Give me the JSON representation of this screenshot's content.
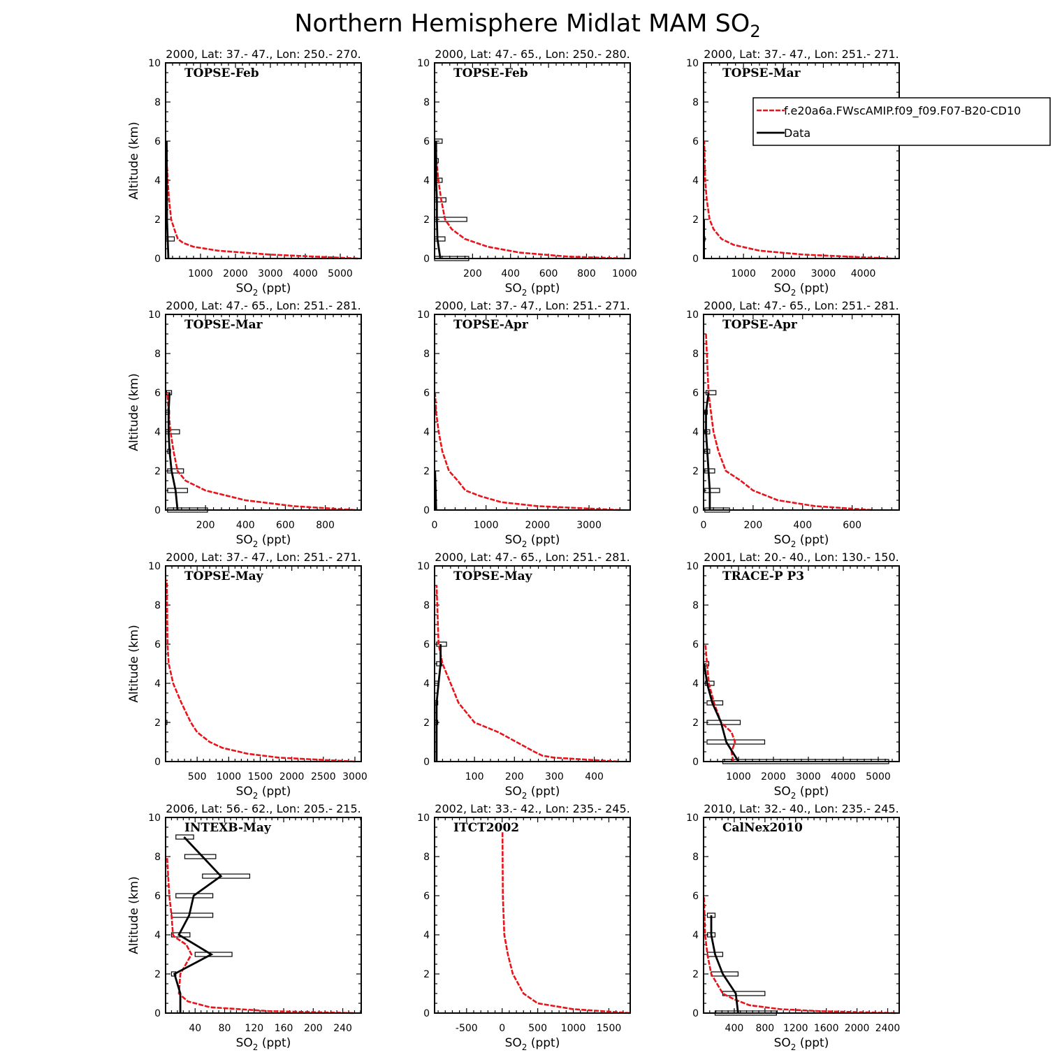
{
  "figure_title": "Northern Hemisphere Midlat MAM SO",
  "figure_title_sub": "2",
  "legend": {
    "model": "f.e20a6a.FWscAMIP.f09_f09.F07-B20-CD10",
    "data": "Data",
    "model_color": "#e8141b",
    "data_color": "#000000"
  },
  "ylabel": "Altitude (km)",
  "xlabel_pre": "SO",
  "xlabel_sub": "2",
  "xlabel_post": " (ppt)",
  "chart_data": [
    {
      "type": "line",
      "title": "2000, Lat: 37.- 47., Lon: 250.- 270.",
      "campaign": "TOPSE-Feb",
      "xlim": [
        0,
        5600
      ],
      "ylim": [
        0,
        10
      ],
      "xticks": [
        1000,
        2000,
        3000,
        4000,
        5000
      ],
      "yticks": [
        0,
        2,
        4,
        6,
        8,
        10
      ],
      "model": {
        "x": [
          5500,
          3000,
          1500,
          800,
          500,
          350,
          250,
          160,
          100,
          60,
          30,
          10
        ],
        "y": [
          0,
          0.2,
          0.4,
          0.6,
          0.8,
          1.0,
          1.5,
          2.0,
          3.0,
          4.0,
          5.0,
          6.0
        ]
      },
      "data": {
        "x": [
          80,
          60,
          40,
          30
        ],
        "y": [
          0,
          1,
          2,
          6
        ]
      },
      "boxes": [
        {
          "y": 1,
          "x1": 10,
          "x2": 250
        }
      ]
    },
    {
      "type": "line",
      "title": "2000, Lat: 47.- 65., Lon: 250.- 280.",
      "campaign": "TOPSE-Feb",
      "xlim": [
        0,
        1030
      ],
      "ylim": [
        0,
        10
      ],
      "xticks": [
        200,
        400,
        600,
        800,
        1000
      ],
      "yticks": [
        0,
        2,
        4,
        6,
        8,
        10
      ],
      "model": {
        "x": [
          1000,
          700,
          450,
          280,
          160,
          90,
          55,
          35,
          20,
          10,
          5
        ],
        "y": [
          0,
          0.1,
          0.3,
          0.6,
          1.0,
          1.5,
          2.0,
          3.0,
          4.0,
          5.0,
          6.0
        ]
      },
      "data": {
        "x": [
          30,
          15,
          12,
          12,
          8,
          8,
          8
        ],
        "y": [
          0,
          1,
          2,
          3,
          4,
          5,
          6
        ]
      },
      "boxes": [
        {
          "y": 6,
          "x1": 0,
          "x2": 40
        },
        {
          "y": 5,
          "x1": 0,
          "x2": 20
        },
        {
          "y": 4,
          "x1": 0,
          "x2": 40
        },
        {
          "y": 3,
          "x1": 0,
          "x2": 60
        },
        {
          "y": 2,
          "x1": 0,
          "x2": 170
        },
        {
          "y": 1,
          "x1": 0,
          "x2": 55
        },
        {
          "y": 0,
          "x1": 0,
          "x2": 180
        }
      ]
    },
    {
      "type": "line",
      "title": "2000, Lat: 37.- 47., Lon: 251.- 271.",
      "campaign": "TOPSE-Mar",
      "xlim": [
        0,
        4900
      ],
      "ylim": [
        0,
        10
      ],
      "xticks": [
        1000,
        2000,
        3000,
        4000
      ],
      "yticks": [
        0,
        2,
        4,
        6,
        8,
        10
      ],
      "model": {
        "x": [
          4700,
          2500,
          1400,
          750,
          450,
          250,
          150,
          80,
          40,
          15
        ],
        "y": [
          0,
          0.2,
          0.4,
          0.7,
          1.0,
          1.5,
          2.0,
          3.0,
          4.0,
          6.0
        ]
      },
      "data": {
        "x": [
          10,
          10,
          10
        ],
        "y": [
          0,
          1,
          2
        ]
      },
      "boxes": [
        {
          "y": 1,
          "x1": 0,
          "x2": 20
        }
      ]
    },
    {
      "type": "line",
      "title": "2000, Lat: 47.- 65., Lon: 251.- 281.",
      "campaign": "TOPSE-Mar",
      "xlim": [
        0,
        980
      ],
      "ylim": [
        0,
        10
      ],
      "xticks": [
        200,
        400,
        600,
        800
      ],
      "yticks": [
        0,
        2,
        4,
        6,
        8,
        10
      ],
      "model": {
        "x": [
          950,
          640,
          400,
          200,
          100,
          60,
          40,
          25,
          15,
          8
        ],
        "y": [
          0,
          0.2,
          0.5,
          1.0,
          1.5,
          2.0,
          3.0,
          4.0,
          5.0,
          6.0
        ]
      },
      "data": {
        "x": [
          60,
          50,
          30,
          20,
          15,
          15,
          20
        ],
        "y": [
          0,
          1,
          2,
          3,
          4,
          5,
          6
        ]
      },
      "boxes": [
        {
          "y": 6,
          "x1": 5,
          "x2": 30
        },
        {
          "y": 5,
          "x1": 2,
          "x2": 20
        },
        {
          "y": 4,
          "x1": 2,
          "x2": 70
        },
        {
          "y": 3,
          "x1": 10,
          "x2": 25
        },
        {
          "y": 2,
          "x1": 10,
          "x2": 90
        },
        {
          "y": 1,
          "x1": 10,
          "x2": 110
        },
        {
          "y": 0,
          "x1": 10,
          "x2": 210
        }
      ]
    },
    {
      "type": "line",
      "title": "2000, Lat: 37.- 47., Lon: 251.- 271.",
      "campaign": "TOPSE-Apr",
      "xlim": [
        0,
        3800
      ],
      "ylim": [
        0,
        10
      ],
      "xticks": [
        0,
        1000,
        2000,
        3000
      ],
      "yticks": [
        0,
        2,
        4,
        6,
        8,
        10
      ],
      "model": {
        "x": [
          3600,
          2000,
          1300,
          900,
          600,
          450,
          280,
          150,
          80,
          30,
          10
        ],
        "y": [
          0,
          0.2,
          0.4,
          0.7,
          1.0,
          1.5,
          2.0,
          3.0,
          4.0,
          5.0,
          6.0
        ]
      },
      "data": {
        "x": [
          30,
          20,
          10
        ],
        "y": [
          0,
          1,
          2
        ]
      },
      "boxes": [
        {
          "y": 5,
          "x1": 0,
          "x2": 10
        }
      ]
    },
    {
      "type": "line",
      "title": "2000, Lat: 47.- 65., Lon: 251.- 281.",
      "campaign": "TOPSE-Apr",
      "xlim": [
        0,
        790
      ],
      "ylim": [
        0,
        10
      ],
      "xticks": [
        0,
        200,
        400,
        600
      ],
      "yticks": [
        0,
        2,
        4,
        6,
        8,
        10
      ],
      "model": {
        "x": [
          680,
          450,
          300,
          200,
          150,
          90,
          60,
          40,
          30,
          20,
          10
        ],
        "y": [
          0,
          0.2,
          0.5,
          1.0,
          1.5,
          2.0,
          3.0,
          4.0,
          5.0,
          6.0,
          9.0
        ]
      },
      "data": {
        "x": [
          25,
          25,
          20,
          15,
          10,
          10,
          20
        ],
        "y": [
          0,
          1,
          2,
          3,
          4,
          5,
          6
        ]
      },
      "boxes": [
        {
          "y": 6,
          "x1": 10,
          "x2": 50
        },
        {
          "y": 5,
          "x1": 5,
          "x2": 15
        },
        {
          "y": 4,
          "x1": 5,
          "x2": 25
        },
        {
          "y": 3,
          "x1": 5,
          "x2": 25
        },
        {
          "y": 2,
          "x1": 5,
          "x2": 45
        },
        {
          "y": 1,
          "x1": 5,
          "x2": 65
        },
        {
          "y": 0,
          "x1": 5,
          "x2": 105
        }
      ]
    },
    {
      "type": "line",
      "title": "2000, Lat: 37.- 47., Lon: 251.- 271.",
      "campaign": "TOPSE-May",
      "xlim": [
        0,
        3100
      ],
      "ylim": [
        0,
        10
      ],
      "xticks": [
        500,
        1000,
        1500,
        2000,
        2500,
        3000
      ],
      "yticks": [
        0,
        2,
        4,
        6,
        8,
        10
      ],
      "model": {
        "x": [
          3000,
          1800,
          1300,
          900,
          700,
          500,
          400,
          250,
          120,
          50,
          30,
          20
        ],
        "y": [
          0,
          0.2,
          0.4,
          0.7,
          1.0,
          1.5,
          2.0,
          3.0,
          4.0,
          5.0,
          6.0,
          9.3
        ]
      },
      "data": {
        "x": [
          10,
          10
        ],
        "y": [
          2,
          2
        ]
      },
      "boxes": [
        {
          "y": 2,
          "x1": 0,
          "x2": 20
        }
      ]
    },
    {
      "type": "line",
      "title": "2000, Lat: 47.- 65., Lon: 251.- 281.",
      "campaign": "TOPSE-May",
      "xlim": [
        0,
        490
      ],
      "ylim": [
        0,
        10
      ],
      "xticks": [
        100,
        200,
        300,
        400
      ],
      "yticks": [
        0,
        2,
        4,
        6,
        8,
        10
      ],
      "model": {
        "x": [
          460,
          300,
          270,
          250,
          160,
          100,
          60,
          40,
          20,
          10,
          5
        ],
        "y": [
          0,
          0.2,
          0.3,
          0.5,
          1.5,
          2.0,
          3.0,
          4.0,
          5.0,
          6.0,
          9.0
        ]
      },
      "data": {
        "x": [
          5,
          5,
          5,
          5,
          10,
          15,
          15
        ],
        "y": [
          0,
          1,
          2,
          3,
          4,
          5,
          6
        ]
      },
      "boxes": [
        {
          "y": 6,
          "x1": 5,
          "x2": 30
        },
        {
          "y": 5,
          "x1": 5,
          "x2": 18
        },
        {
          "y": 4,
          "x1": 0,
          "x2": 10
        },
        {
          "y": 3,
          "x1": 0,
          "x2": 8
        },
        {
          "y": 2,
          "x1": 0,
          "x2": 8
        }
      ]
    },
    {
      "type": "line",
      "title": "2001, Lat: 20.- 40., Lon: 130.- 150.",
      "campaign": "TRACE-P P3",
      "xlim": [
        0,
        5600
      ],
      "ylim": [
        0,
        10
      ],
      "xticks": [
        1000,
        2000,
        3000,
        4000,
        5000
      ],
      "yticks": [
        0,
        2,
        4,
        6,
        8,
        10
      ],
      "model": {
        "x": [
          850,
          800,
          900,
          800,
          500,
          300,
          150,
          50
        ],
        "y": [
          0,
          0.5,
          1.0,
          1.5,
          2.0,
          3.0,
          4.0,
          6.0
        ]
      },
      "data": {
        "x": [
          1000,
          650,
          500,
          250,
          100,
          20
        ],
        "y": [
          0,
          1,
          2,
          3,
          4,
          5
        ]
      },
      "boxes": [
        {
          "y": 5,
          "x1": 0,
          "x2": 150
        },
        {
          "y": 4,
          "x1": 50,
          "x2": 300
        },
        {
          "y": 3,
          "x1": 100,
          "x2": 550
        },
        {
          "y": 2,
          "x1": 100,
          "x2": 1050
        },
        {
          "y": 1,
          "x1": 100,
          "x2": 1750
        },
        {
          "y": 0,
          "x1": 550,
          "x2": 5300
        }
      ]
    },
    {
      "type": "line",
      "title": "2006, Lat: 56.- 62., Lon: 205.- 215.",
      "campaign": "INTEXB-May",
      "xlim": [
        0,
        265
      ],
      "ylim": [
        0,
        10
      ],
      "xticks": [
        40,
        80,
        120,
        160,
        200,
        240
      ],
      "yticks": [
        0,
        2,
        4,
        6,
        8,
        10
      ],
      "model": {
        "x": [
          255,
          140,
          60,
          30,
          18,
          20,
          35,
          28,
          12,
          10,
          8,
          5,
          2
        ],
        "y": [
          0,
          0.1,
          0.3,
          0.6,
          1.0,
          2.0,
          3.0,
          3.5,
          3.9,
          4.0,
          5.0,
          6.0,
          8.0
        ]
      },
      "data": {
        "x": [
          20,
          20,
          12,
          62,
          18,
          32,
          38,
          75,
          50,
          25
        ],
        "y": [
          0,
          1,
          2,
          3,
          4,
          5,
          6,
          7,
          8,
          9
        ]
      },
      "boxes": [
        {
          "y": 9,
          "x1": 14,
          "x2": 38
        },
        {
          "y": 8,
          "x1": 26,
          "x2": 68
        },
        {
          "y": 7,
          "x1": 50,
          "x2": 114
        },
        {
          "y": 6,
          "x1": 14,
          "x2": 64
        },
        {
          "y": 5,
          "x1": 8,
          "x2": 64
        },
        {
          "y": 4,
          "x1": 8,
          "x2": 33
        },
        {
          "y": 3,
          "x1": 40,
          "x2": 90
        },
        {
          "y": 2,
          "x1": 8,
          "x2": 14
        }
      ]
    },
    {
      "type": "line",
      "title": "2002, Lat: 33.- 42., Lon: 235.- 245.",
      "campaign": "ITCT2002",
      "xlim": [
        -950,
        1800
      ],
      "ylim": [
        0,
        10
      ],
      "xticks": [
        -500,
        0,
        500,
        1000,
        1500
      ],
      "yticks": [
        0,
        2,
        4,
        6,
        8,
        10
      ],
      "model": {
        "x": [
          1800,
          1000,
          500,
          300,
          150,
          80,
          30,
          10,
          5
        ],
        "y": [
          0,
          0.2,
          0.5,
          1.0,
          2.0,
          3.0,
          4.0,
          6.0,
          9.3
        ]
      },
      "data": {
        "x": [],
        "y": []
      },
      "boxes": []
    },
    {
      "type": "line",
      "title": "2010, Lat: 32.- 40., Lon: 235.- 245.",
      "campaign": "CalNex2010",
      "xlim": [
        0,
        2550
      ],
      "ylim": [
        0,
        10
      ],
      "xticks": [
        400,
        800,
        1200,
        1600,
        2000,
        2400
      ],
      "yticks": [
        0,
        2,
        4,
        6,
        8,
        10
      ],
      "model": {
        "x": [
          2500,
          1500,
          1000,
          600,
          400,
          250,
          100,
          50,
          20,
          5
        ],
        "y": [
          0,
          0.1,
          0.2,
          0.4,
          0.7,
          1.0,
          2.0,
          3.0,
          4.0,
          6.0
        ]
      },
      "data": {
        "x": [
          450,
          420,
          250,
          150,
          100,
          100
        ],
        "y": [
          0,
          1,
          2,
          3,
          4,
          5
        ]
      },
      "boxes": [
        {
          "y": 5,
          "x1": 50,
          "x2": 150
        },
        {
          "y": 4,
          "x1": 50,
          "x2": 150
        },
        {
          "y": 3,
          "x1": 50,
          "x2": 250
        },
        {
          "y": 2,
          "x1": 100,
          "x2": 450
        },
        {
          "y": 1,
          "x1": 250,
          "x2": 800
        },
        {
          "y": 0,
          "x1": 150,
          "x2": 950
        }
      ]
    }
  ]
}
